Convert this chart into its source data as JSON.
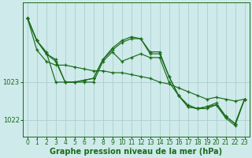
{
  "background_color": "#ceeaea",
  "grid_color": "#aecece",
  "line_color": "#1a6b1a",
  "xlabel": "Graphe pression niveau de la mer (hPa)",
  "xlabel_fontsize": 7,
  "ytick_labels": [
    "1022",
    "1023"
  ],
  "yticks": [
    1022.0,
    1023.0
  ],
  "ylim": [
    1021.55,
    1025.1
  ],
  "xlim": [
    -0.5,
    23.5
  ],
  "xticks": [
    0,
    1,
    2,
    3,
    4,
    5,
    6,
    7,
    8,
    9,
    10,
    11,
    12,
    13,
    14,
    15,
    16,
    17,
    18,
    19,
    20,
    21,
    22,
    23
  ],
  "series": [
    [
      1024.7,
      1023.85,
      1023.55,
      1023.45,
      1023.45,
      1023.4,
      1023.35,
      1023.3,
      1023.3,
      1023.25,
      1023.25,
      1023.2,
      1023.15,
      1023.1,
      1023.0,
      1022.95,
      1022.85,
      1022.75,
      1022.65,
      1022.55,
      1022.6,
      1022.55,
      1022.5,
      1022.55
    ],
    [
      1024.7,
      1024.1,
      1023.8,
      1023.0,
      1023.0,
      1023.0,
      1023.0,
      1023.0,
      1023.55,
      1023.8,
      1023.55,
      1023.65,
      1023.75,
      1023.65,
      1023.65,
      1023.0,
      1022.65,
      1022.35,
      1022.3,
      1022.35,
      1022.4,
      1022.1,
      1021.9,
      1022.55
    ],
    [
      1024.7,
      1024.1,
      1023.75,
      1023.6,
      1023.0,
      1023.0,
      1023.05,
      1023.1,
      1023.6,
      1023.9,
      1024.1,
      1024.2,
      1024.15,
      1023.75,
      1023.75,
      1023.15,
      1022.65,
      1022.35,
      1022.3,
      1022.3,
      1022.4,
      1022.05,
      1021.85,
      1022.55
    ],
    [
      1024.7,
      1024.1,
      1023.75,
      1023.55,
      1023.0,
      1023.0,
      1023.05,
      1023.1,
      1023.6,
      1023.85,
      1024.05,
      1024.15,
      1024.15,
      1023.8,
      1023.8,
      1023.15,
      1022.65,
      1022.4,
      1022.3,
      1022.35,
      1022.45,
      1022.1,
      1021.9,
      1022.55
    ]
  ]
}
